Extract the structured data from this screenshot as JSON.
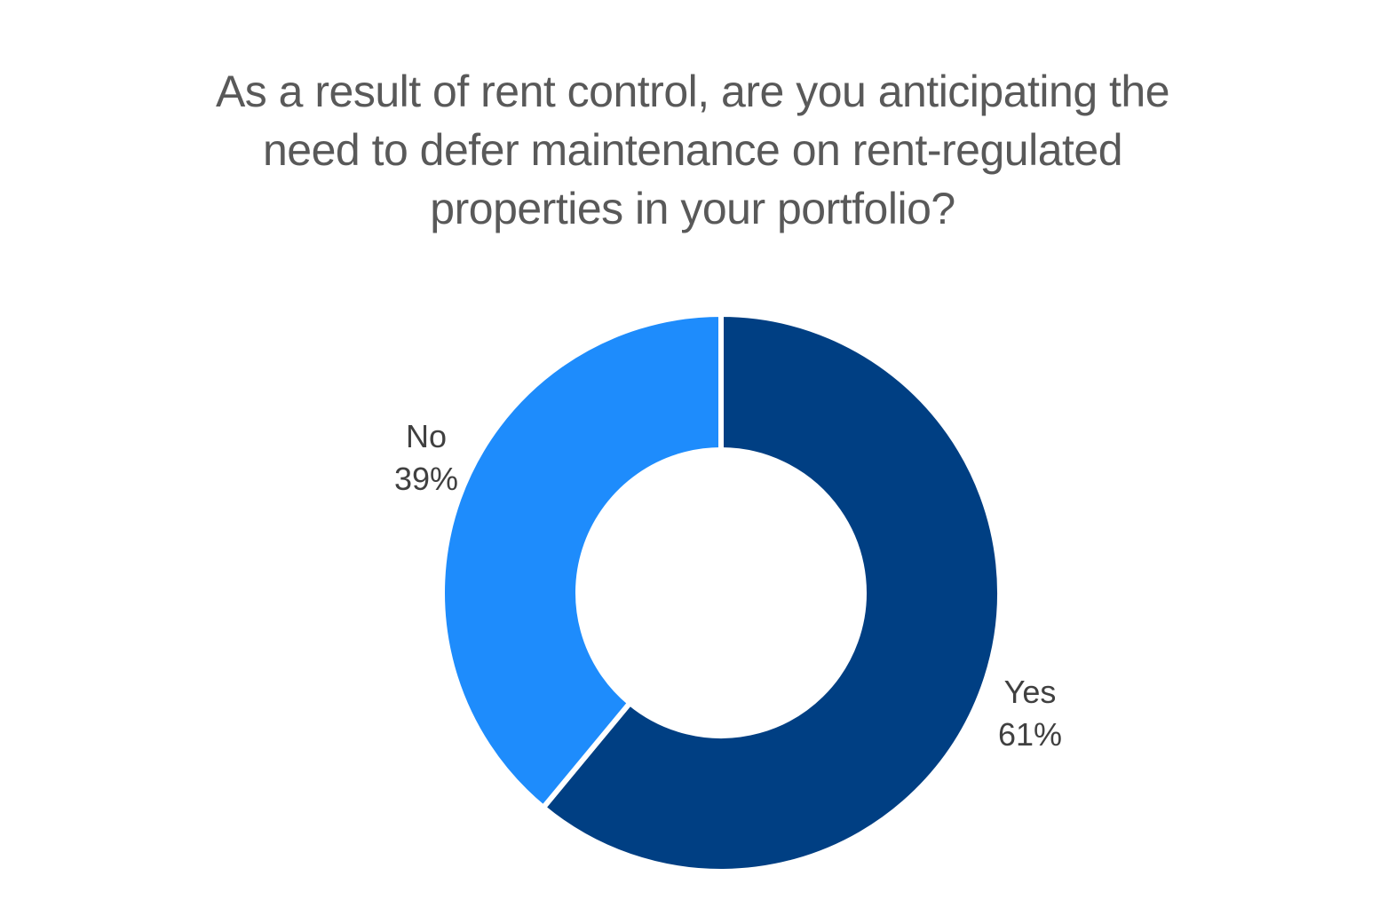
{
  "chart_data": {
    "type": "pie",
    "donut": true,
    "title": "As a result of rent control, are you anticipating the need to defer maintenance on rent-regulated properties in your portfolio?",
    "slices": [
      {
        "label": "Yes",
        "value": 61,
        "display": "61%",
        "color": "#003F83"
      },
      {
        "label": "No",
        "value": 39,
        "display": "39%",
        "color": "#1E8CFC"
      }
    ],
    "legend": "none",
    "start_angle": "top",
    "direction": "clockwise"
  }
}
